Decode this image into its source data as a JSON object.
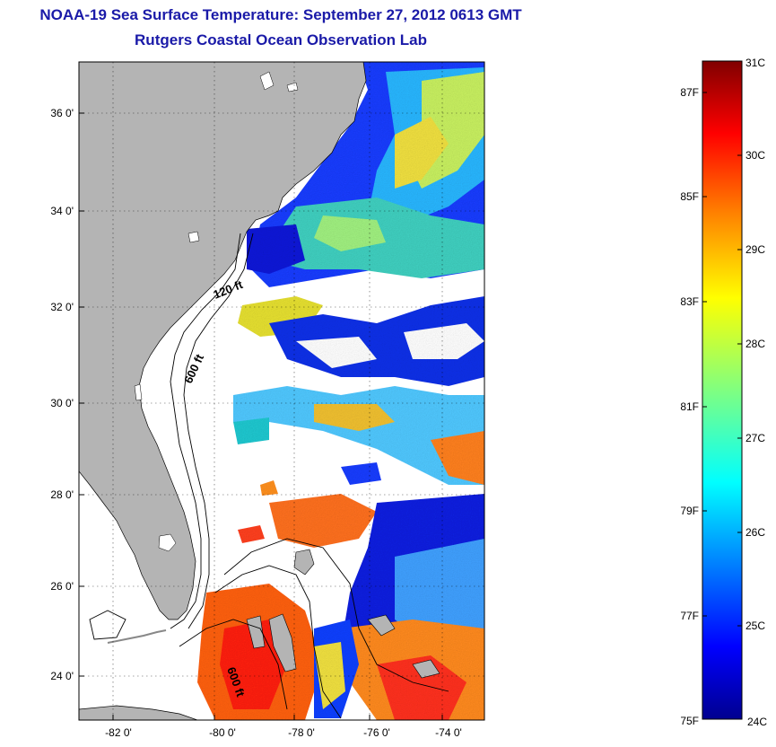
{
  "title": "NOAA-19 Sea Surface Temperature:  September 27, 2012 0613 GMT",
  "subtitle": "Rutgers Coastal Ocean Observation Lab",
  "map": {
    "lon_labels": [
      "-82 0'",
      "-80 0'",
      "-78 0'",
      "-76 0'",
      "-74 0'"
    ],
    "lat_labels": [
      "36 0'",
      "34 0'",
      "32 0'",
      "30 0'",
      "28 0'",
      "26 0'",
      "24 0'"
    ],
    "lon_range": [
      -83,
      -73
    ],
    "lat_range": [
      23,
      37
    ],
    "grid": "dotted",
    "contour_labels": [
      "120 ft",
      "600 ft",
      "600 ft"
    ],
    "colors": {
      "land": "#b4b4b4",
      "no_data": "#ffffff",
      "border": "#000000"
    }
  },
  "colorbar": {
    "celsius_labels": [
      "31C",
      "30C",
      "29C",
      "28C",
      "27C",
      "26C",
      "25C",
      "24C"
    ],
    "fahrenheit_labels": [
      "87F",
      "85F",
      "83F",
      "81F",
      "79F",
      "77F",
      "75F"
    ],
    "range_c": [
      24,
      31
    ],
    "colormap": [
      "#00008f",
      "#0000ff",
      "#0080ff",
      "#00ffff",
      "#80ff80",
      "#ffff00",
      "#ff8000",
      "#ff0000",
      "#800000"
    ]
  }
}
